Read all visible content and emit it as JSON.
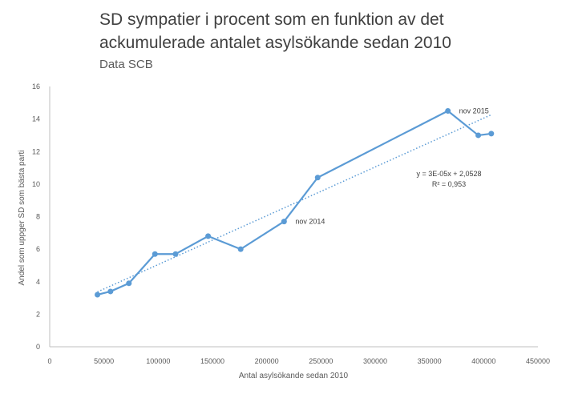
{
  "chart_data": {
    "type": "line",
    "title_lines": [
      "SD sympatier  i procent som en funktion av det",
      "ackumulerade antalet asylsökande sedan 2010"
    ],
    "subtitle": "Data SCB",
    "xlabel": "Antal asylsökande sedan 2010",
    "ylabel": "Andel som uppger SD som  bästa parti",
    "xlim": [
      0,
      450000
    ],
    "ylim": [
      0,
      16
    ],
    "x_ticks": [
      "0",
      "50000",
      "100000",
      "150000",
      "200000",
      "250000",
      "300000",
      "350000",
      "400000",
      "450000"
    ],
    "y_ticks": [
      "0",
      "2",
      "4",
      "6",
      "8",
      "10",
      "12",
      "14",
      "16"
    ],
    "grid": false,
    "series": [
      {
        "color": "#5b9bd5",
        "points": [
          {
            "x": 44000,
            "y": 3.2
          },
          {
            "x": 56000,
            "y": 3.4
          },
          {
            "x": 73000,
            "y": 3.9
          },
          {
            "x": 97000,
            "y": 5.7
          },
          {
            "x": 116000,
            "y": 5.7
          },
          {
            "x": 146000,
            "y": 6.8
          },
          {
            "x": 176000,
            "y": 6.0
          },
          {
            "x": 216000,
            "y": 7.7
          },
          {
            "x": 247000,
            "y": 10.4
          },
          {
            "x": 367000,
            "y": 14.5
          },
          {
            "x": 395000,
            "y": 13.0
          },
          {
            "x": 407000,
            "y": 13.1
          }
        ]
      }
    ],
    "trendline": {
      "type": "linear",
      "slope": 3e-05,
      "intercept": 2.0528,
      "x_range": [
        44000,
        407000
      ],
      "style": "dotted",
      "color": "#5b9bd5",
      "equation": "y = 3E-05x + 2,0528",
      "r_squared": "R² = 0,953"
    },
    "annotations": [
      {
        "text": "nov 2014",
        "x": 216000,
        "y": 7.7
      },
      {
        "text": "nov 2015",
        "x": 367000,
        "y": 14.5
      }
    ]
  }
}
